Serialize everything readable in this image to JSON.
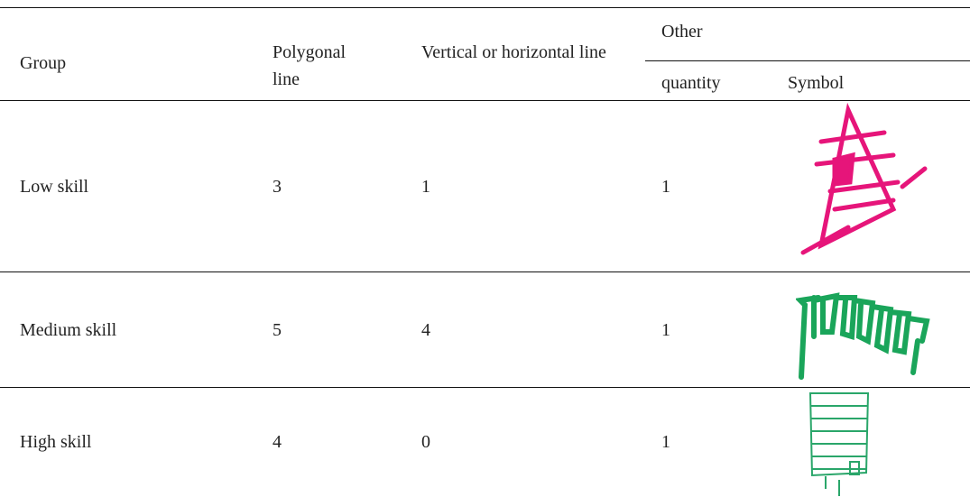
{
  "table": {
    "header": {
      "group": "Group",
      "polygonal": "Polygonal line",
      "vertical": "Vertical or horizontal line",
      "other": "Other",
      "quantity": "quantity",
      "symbol": "Symbol"
    },
    "rows": [
      [
        "Low skill",
        3,
        1,
        1
      ],
      [
        "Medium skill",
        5,
        4,
        1
      ],
      [
        "High skill",
        4,
        0,
        1
      ]
    ]
  }
}
